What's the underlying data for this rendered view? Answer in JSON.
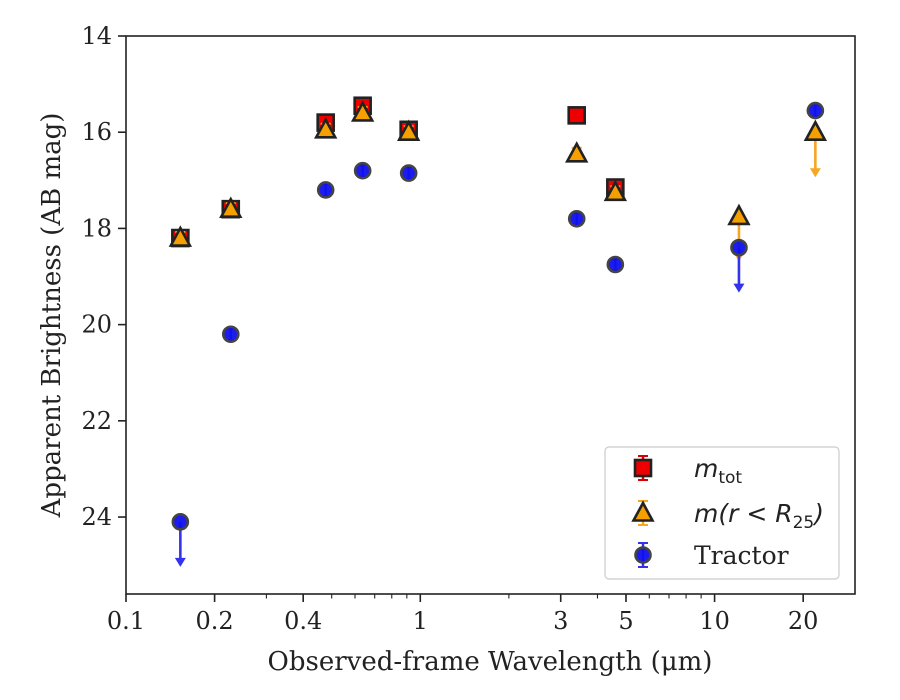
{
  "chart_data": {
    "type": "scatter",
    "xlabel": "Observed-frame Wavelength (μm)",
    "ylabel": "Apparent Brightness (AB mag)",
    "xscale": "log",
    "xlim": [
      0.1,
      30
    ],
    "ylim": [
      25.6,
      14
    ],
    "y_inverted": true,
    "x_ticks": [
      0.1,
      0.2,
      0.4,
      1,
      3,
      5,
      10,
      20
    ],
    "x_tick_labels": [
      "0.1",
      "0.2",
      "0.4",
      "1",
      "3",
      "5",
      "10",
      "20"
    ],
    "y_ticks": [
      14,
      16,
      18,
      20,
      22,
      24
    ],
    "y_tick_labels": [
      "14",
      "16",
      "18",
      "20",
      "22",
      "24"
    ],
    "legend_position": "lower-right",
    "series": [
      {
        "name": "m_tot",
        "legend_label": {
          "base": "m",
          "sub": "tot"
        },
        "marker": "square",
        "color": "#ee0000",
        "edge_color": "#222222",
        "error_color": "#dd0000",
        "points": [
          {
            "x": 0.153,
            "y": 18.2,
            "yerr": 0.05
          },
          {
            "x": 0.227,
            "y": 17.6,
            "yerr": 0.05
          },
          {
            "x": 0.477,
            "y": 15.8,
            "yerr": 0.05
          },
          {
            "x": 0.637,
            "y": 15.45,
            "yerr": 0.05
          },
          {
            "x": 0.913,
            "y": 15.95,
            "yerr": 0.05
          },
          {
            "x": 3.4,
            "y": 15.65,
            "yerr": 0.05
          },
          {
            "x": 4.6,
            "y": 17.15,
            "yerr": 0.05
          }
        ]
      },
      {
        "name": "m(r < R25)",
        "legend_label": {
          "base": "m(r < R",
          "sub": "25",
          "tail": ")"
        },
        "marker": "triangle",
        "color": "#f5a000",
        "edge_color": "#222222",
        "error_color": "#f5a623",
        "points": [
          {
            "x": 0.153,
            "y": 18.2,
            "yerr": 0.05
          },
          {
            "x": 0.227,
            "y": 17.6,
            "yerr": 0.05
          },
          {
            "x": 0.477,
            "y": 15.95,
            "yerr": 0.05
          },
          {
            "x": 0.637,
            "y": 15.6,
            "yerr": 0.05
          },
          {
            "x": 0.913,
            "y": 16.0,
            "yerr": 0.05
          },
          {
            "x": 3.4,
            "y": 16.45,
            "yerr": 0.05
          },
          {
            "x": 4.6,
            "y": 17.25,
            "yerr": 0.05
          },
          {
            "x": 12.1,
            "y": 17.75,
            "upper_limit": true
          },
          {
            "x": 22.0,
            "y": 16.0,
            "upper_limit": true
          }
        ]
      },
      {
        "name": "Tractor",
        "legend_label": {
          "base": "Tractor"
        },
        "marker": "circle",
        "color": "#1010ee",
        "edge_color": "#444444",
        "error_color": "#3333ee",
        "points": [
          {
            "x": 0.153,
            "y": 24.1,
            "upper_limit": true
          },
          {
            "x": 0.227,
            "y": 20.2,
            "yerr": 0.05
          },
          {
            "x": 0.477,
            "y": 17.2,
            "yerr": 0.05
          },
          {
            "x": 0.637,
            "y": 16.8,
            "yerr": 0.05
          },
          {
            "x": 0.913,
            "y": 16.85,
            "yerr": 0.05
          },
          {
            "x": 3.4,
            "y": 17.8,
            "yerr": 0.05
          },
          {
            "x": 4.6,
            "y": 18.75,
            "yerr": 0.05
          },
          {
            "x": 12.1,
            "y": 18.4,
            "upper_limit": true
          },
          {
            "x": 22.0,
            "y": 15.55,
            "yerr": 0.05
          }
        ]
      }
    ]
  }
}
